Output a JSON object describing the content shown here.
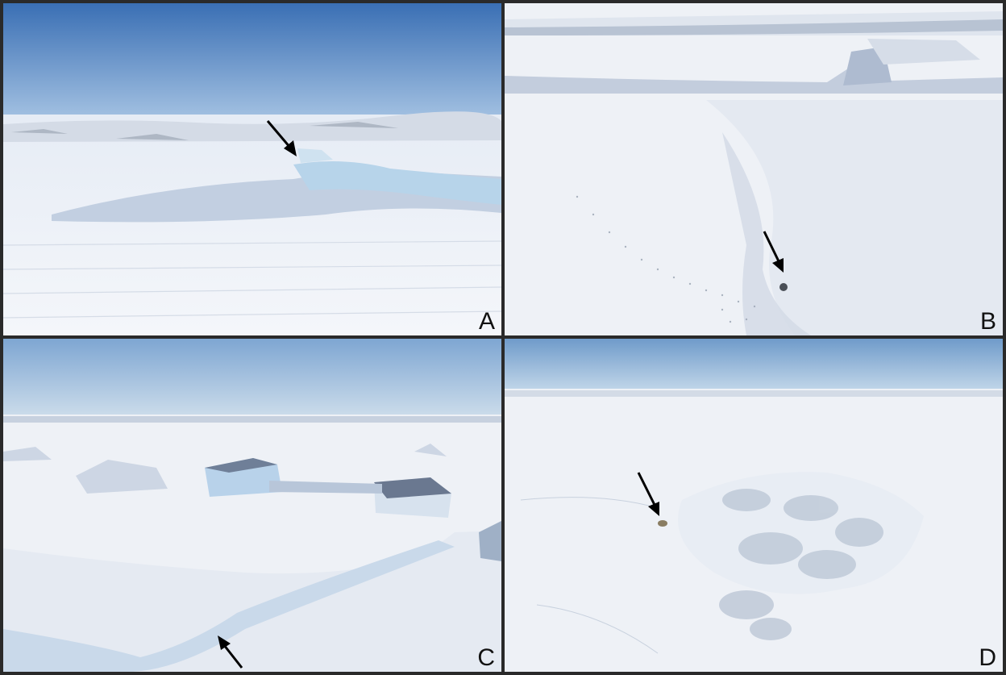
{
  "panels": [
    {
      "id": "A",
      "label": "A",
      "arrow_target": "ice-cliff-crest"
    },
    {
      "id": "B",
      "label": "B",
      "arrow_target": "snow-burrow"
    },
    {
      "id": "C",
      "label": "C",
      "arrow_target": "ice-ridge-crack"
    },
    {
      "id": "D",
      "label": "D",
      "arrow_target": "animal-beside-rubble"
    }
  ],
  "colors": {
    "sky_top": "#3f74b8",
    "sky_bottom": "#a9c6e3",
    "snow": "#eef1f6",
    "snow_shadow": "#c4cfe0",
    "ice_blue": "#b9d6ea",
    "arrow": "#000000",
    "divider": "#2a2a2a"
  }
}
